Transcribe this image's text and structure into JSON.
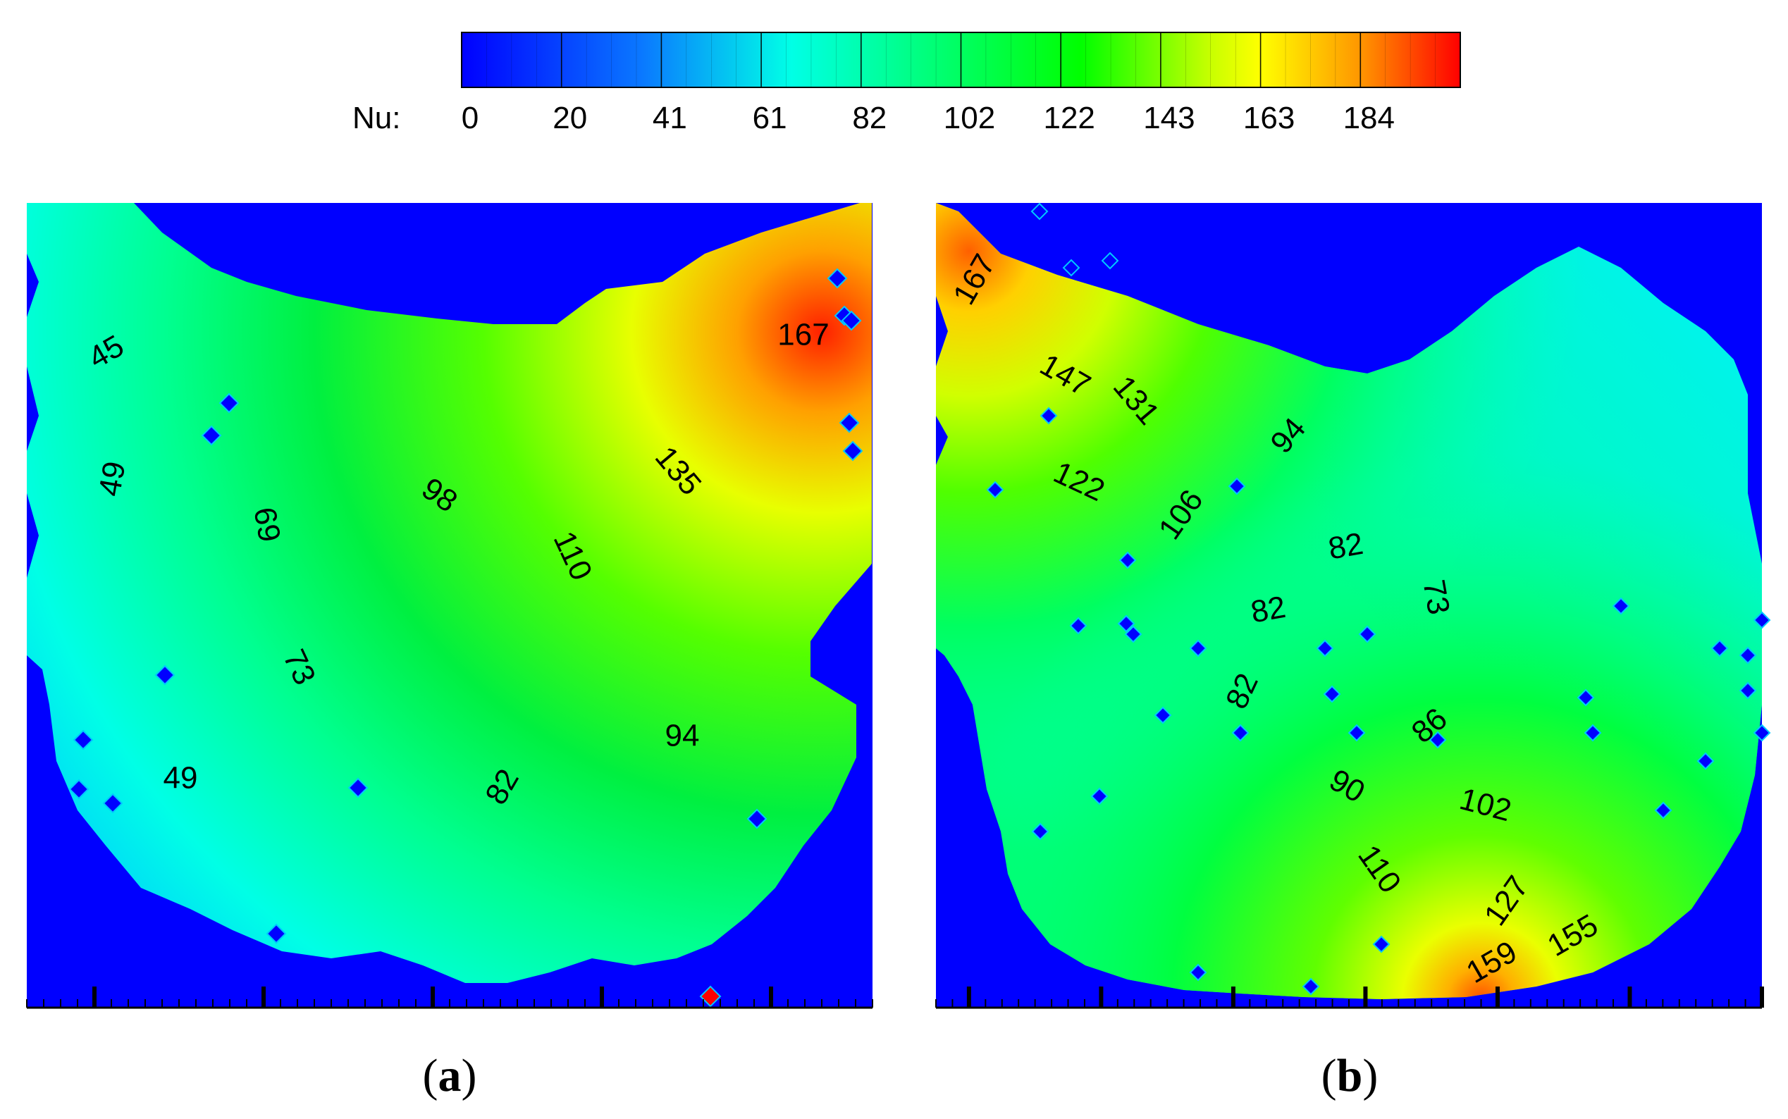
{
  "chart_data": {
    "type": "heatmap",
    "colorbar": {
      "label": "Nu:",
      "min": 0,
      "max": 204,
      "tick_labels": [
        "0",
        "20",
        "41",
        "61",
        "82",
        "102",
        "122",
        "143",
        "163",
        "184"
      ],
      "colors": [
        "#0000ff",
        "#00b4ff",
        "#00ffe6",
        "#00ff00",
        "#c8ff00",
        "#ffff00",
        "#ff9600",
        "#ff0000"
      ]
    },
    "background_color": "#0000ff",
    "panels": [
      {
        "label_open": "(",
        "label_letter": "a",
        "label_close": ")",
        "contour_labels": [
          {
            "text": "45",
            "rotate": -30
          },
          {
            "text": "49",
            "rotate": -80
          },
          {
            "text": "69",
            "rotate": 80
          },
          {
            "text": "98",
            "rotate": 35
          },
          {
            "text": "135",
            "rotate": 50
          },
          {
            "text": "110",
            "rotate": 65
          },
          {
            "text": "73",
            "rotate": 65
          },
          {
            "text": "94",
            "rotate": 0
          },
          {
            "text": "49",
            "rotate": 0
          },
          {
            "text": "82",
            "rotate": -60
          },
          {
            "text": "167",
            "rotate": 0
          }
        ]
      },
      {
        "label_open": "(",
        "label_letter": "b",
        "label_close": ")",
        "contour_labels": [
          {
            "text": "167",
            "rotate": -60
          },
          {
            "text": "147",
            "rotate": 30
          },
          {
            "text": "131",
            "rotate": 50
          },
          {
            "text": "94",
            "rotate": -50
          },
          {
            "text": "122",
            "rotate": 25
          },
          {
            "text": "106",
            "rotate": -55
          },
          {
            "text": "82",
            "rotate": -10
          },
          {
            "text": "73",
            "rotate": 80
          },
          {
            "text": "82",
            "rotate": -10
          },
          {
            "text": "82",
            "rotate": -65
          },
          {
            "text": "86",
            "rotate": -40
          },
          {
            "text": "90",
            "rotate": 30
          },
          {
            "text": "102",
            "rotate": 15
          },
          {
            "text": "110",
            "rotate": 55
          },
          {
            "text": "127",
            "rotate": -55
          },
          {
            "text": "155",
            "rotate": -30
          },
          {
            "text": "159",
            "rotate": -30
          }
        ]
      }
    ]
  }
}
